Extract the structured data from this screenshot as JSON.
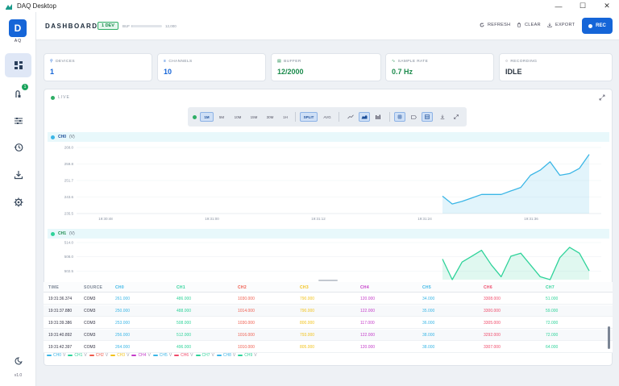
{
  "window": {
    "title": "DAQ Desktop",
    "controls": [
      "—",
      "☐",
      "✕"
    ]
  },
  "sidebar": {
    "logo_letter": "D",
    "logo_sub": "AQ",
    "items": [
      {
        "name": "dashboard",
        "active": true
      },
      {
        "name": "devices",
        "badge": "1"
      },
      {
        "name": "channels"
      },
      {
        "name": "history"
      },
      {
        "name": "export"
      },
      {
        "name": "settings"
      }
    ],
    "version": "v1.0"
  },
  "header": {
    "title": "DASHBOARD",
    "dev_badge": "1 DEV",
    "buf_label": "BUF",
    "buf_value": "12,000",
    "buf_fill": 0.02,
    "actions": {
      "refresh": "REFRESH",
      "clear": "CLEAR",
      "export": "EXPORT",
      "rec": "REC"
    }
  },
  "cards": [
    {
      "label": "DEVICES",
      "value": "1",
      "color": "#1565d8"
    },
    {
      "label": "CHANNELS",
      "value": "10",
      "color": "#1565d8"
    },
    {
      "label": "BUFFER",
      "value": "12/2000",
      "color": "#1b8b4c"
    },
    {
      "label": "SAMPLE RATE",
      "value": "0.7 Hz",
      "color": "#1b8b4c"
    },
    {
      "label": "RECORDING",
      "value": "IDLE",
      "color": "#334"
    }
  ],
  "live": {
    "label": "LIVE",
    "toolbar": {
      "ranges": [
        "1M",
        "5M",
        "10M",
        "15M",
        "30M",
        "1H"
      ],
      "active_range": "1M",
      "split": "SPLIT",
      "avg": "AVG"
    }
  },
  "charts": {
    "ch0": {
      "name": "CH0",
      "unit": "(V)",
      "yticks": [
        "268.0",
        "259.8",
        "251.7",
        "243.6",
        "235.5"
      ],
      "xticks": [
        "19:30:48",
        "19:31:00",
        "19:31:12",
        "19:31:24",
        "19:31:36"
      ],
      "color": "#3bb6e6"
    },
    "ch1": {
      "name": "CH1",
      "unit": "(V)",
      "yticks": [
        "514.0",
        "508.0",
        "502.5"
      ],
      "color": "#2fd39a"
    }
  },
  "table": {
    "headers": [
      "TIME",
      "SOURCE",
      "CH0",
      "CH1",
      "CH2",
      "CH3",
      "CH4",
      "CH5",
      "CH6",
      "CH7"
    ],
    "header_colors": [
      "#7d8796",
      "#7d8796",
      "#3bb6e6",
      "#2fd39a",
      "#ef5b4c",
      "#f2c21b",
      "#c43cc9",
      "#3bb6e6",
      "#ef4a6a",
      "#2fd39a"
    ],
    "rows": [
      [
        "19:31:36.374",
        "COM3",
        "261.000",
        "486.000",
        "1030.000",
        "790.000",
        "120.000",
        "34.000",
        "3308.000",
        "51.000"
      ],
      [
        "19:31:37.880",
        "COM3",
        "250.000",
        "488.000",
        "1014.000",
        "790.000",
        "122.000",
        "35.000",
        "3300.000",
        "59.000"
      ],
      [
        "19:31:39.386",
        "COM3",
        "253.000",
        "508.000",
        "1030.000",
        "800.000",
        "117.000",
        "36.000",
        "3305.000",
        "72.000"
      ],
      [
        "19:31:40.892",
        "COM3",
        "256.000",
        "512.000",
        "1016.000",
        "793.000",
        "122.000",
        "38.000",
        "3292.000",
        "72.000"
      ],
      [
        "19:31:42.397",
        "COM3",
        "264.000",
        "496.000",
        "1010.000",
        "805.000",
        "120.000",
        "38.000",
        "3307.000",
        "64.000"
      ]
    ]
  },
  "legend": [
    {
      "label": "CH0",
      "unit": "V",
      "color": "#3bb6e6"
    },
    {
      "label": "CH1",
      "unit": "V",
      "color": "#2fd39a"
    },
    {
      "label": "CH2",
      "unit": "V",
      "color": "#ef5b4c"
    },
    {
      "label": "CH3",
      "unit": "V",
      "color": "#f2c21b"
    },
    {
      "label": "CH4",
      "unit": "V",
      "color": "#c43cc9"
    },
    {
      "label": "CH5",
      "unit": "V",
      "color": "#3bb6e6"
    },
    {
      "label": "CH6",
      "unit": "V",
      "color": "#ef4a6a"
    },
    {
      "label": "CH7",
      "unit": "V",
      "color": "#2fd39a"
    },
    {
      "label": "CH8",
      "unit": "V",
      "color": "#3bb6e6"
    },
    {
      "label": "CH9",
      "unit": "V",
      "color": "#2fd39a"
    }
  ],
  "chart_data": [
    {
      "type": "area",
      "title": "CH0",
      "ylabel": "(V)",
      "ylim": [
        230,
        268
      ],
      "x": [
        "19:31:27",
        "19:31:28",
        "19:31:29",
        "19:31:30",
        "19:31:31",
        "19:31:32",
        "19:31:33",
        "19:31:34",
        "19:31:35",
        "19:31:36",
        "19:31:37",
        "19:31:38",
        "19:31:39",
        "19:31:40",
        "19:31:41",
        "19:31:42"
      ],
      "series": [
        {
          "name": "CH0",
          "values": [
            240.0,
            235.5,
            237.0,
            239.0,
            241.0,
            241.0,
            241.0,
            243.0,
            245.0,
            252.0,
            255.0,
            259.8,
            252.0,
            253.0,
            256.0,
            264.0
          ]
        }
      ]
    },
    {
      "type": "area",
      "title": "CH1",
      "ylabel": "(V)",
      "ylim": [
        490,
        514
      ],
      "x": [
        "19:31:27",
        "19:31:28",
        "19:31:29",
        "19:31:30",
        "19:31:31",
        "19:31:32",
        "19:31:33",
        "19:31:34",
        "19:31:35",
        "19:31:36",
        "19:31:37",
        "19:31:38",
        "19:31:39",
        "19:31:40",
        "19:31:41",
        "19:31:42"
      ],
      "series": [
        {
          "name": "CH1",
          "values": [
            504,
            490,
            502,
            506,
            510,
            500,
            492,
            506,
            508,
            500,
            492,
            490,
            505,
            512,
            508,
            496
          ]
        }
      ]
    }
  ]
}
